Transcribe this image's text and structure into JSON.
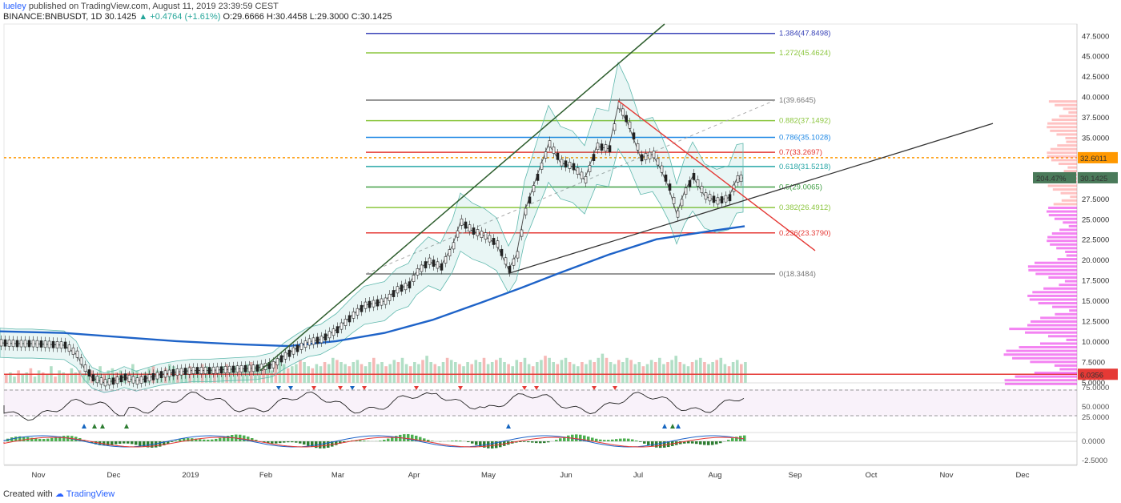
{
  "header": {
    "user": "lueley",
    "published_text": "published on TradingView.com, August 11, 2019 23:39:59 CEST",
    "symbol_line": "BINANCE:BNBUSDT, 1D",
    "close": "30.1425",
    "change": "▲ +0.4764 (+1.61%)",
    "ohlc": "O:29.6666 H:30.4458 L:29.3000 C:30.1425"
  },
  "footer": {
    "created_with": "Created with",
    "brand": "TradingView"
  },
  "colors": {
    "up": "#26a69a",
    "down": "#ef5350",
    "ma200": "#1e63c8",
    "fib_blue": "#3b45b8",
    "fib_lime": "#8cc63f",
    "fib_teal": "#27a6a6",
    "fib_red": "#e53935",
    "fib_gray": "#777777",
    "price_line": "#ff9800",
    "volume_hl": "#e53935"
  },
  "chart_data": {
    "type": "candlestick",
    "price_axis": {
      "ticks": [
        "47.5000",
        "45.0000",
        "42.5000",
        "40.0000",
        "37.5000",
        "35.0000",
        "32.5000",
        "27.5000",
        "25.0000",
        "22.5000",
        "20.0000",
        "17.5000",
        "15.0000",
        "12.5000",
        "10.0000",
        "7.5000",
        "5.0000"
      ],
      "ylim": [
        4,
        49
      ]
    },
    "time_axis": [
      "Nov",
      "Dec",
      "2019",
      "Feb",
      "Mar",
      "Apr",
      "May",
      "Jun",
      "Jul",
      "Aug",
      "Sep",
      "Oct",
      "Nov",
      "Dec"
    ],
    "price_labels": {
      "last": "30.1425",
      "last_pct": "204.47%",
      "orange_level": "32.6011",
      "red_level": "6.0356"
    },
    "levels": {
      "orange": 32.6011,
      "red": 6.0356
    },
    "fib_levels": [
      {
        "label": "1.384(47.8498)",
        "value": 47.8498,
        "color": "#3b45b8"
      },
      {
        "label": "1.272(45.4624)",
        "value": 45.4624,
        "color": "#8cc63f"
      },
      {
        "label": "1(39.6645)",
        "value": 39.6645,
        "color": "#777777"
      },
      {
        "label": "0.882(37.1492)",
        "value": 37.1492,
        "color": "#8cc63f"
      },
      {
        "label": "0.786(35.1028)",
        "value": 35.1028,
        "color": "#1e88e5"
      },
      {
        "label": "0.7(33.2697)",
        "value": 33.2697,
        "color": "#e53935"
      },
      {
        "label": "0.618(31.5218)",
        "value": 31.5218,
        "color": "#27a6a6"
      },
      {
        "label": "0.5(29.0065)",
        "value": 29.0065,
        "color": "#43a047"
      },
      {
        "label": "0.382(26.4912)",
        "value": 26.4912,
        "color": "#8cc63f"
      },
      {
        "label": "0.236(23.3790)",
        "value": 23.379,
        "color": "#e53935"
      },
      {
        "label": "0(18.3484)",
        "value": 18.3484,
        "color": "#777777"
      }
    ],
    "price_path": [
      [
        0,
        9.9
      ],
      [
        20,
        9.8
      ],
      [
        40,
        9.8
      ],
      [
        60,
        9.7
      ],
      [
        80,
        9.6
      ],
      [
        95,
        8.5
      ],
      [
        105,
        6.8
      ],
      [
        115,
        5.6
      ],
      [
        130,
        5.0
      ],
      [
        145,
        5.3
      ],
      [
        155,
        5.7
      ],
      [
        170,
        5.2
      ],
      [
        185,
        5.6
      ],
      [
        200,
        6.0
      ],
      [
        220,
        6.3
      ],
      [
        240,
        6.5
      ],
      [
        260,
        6.5
      ],
      [
        280,
        6.6
      ],
      [
        300,
        6.7
      ],
      [
        320,
        6.8
      ],
      [
        340,
        7.2
      ],
      [
        355,
        8.3
      ],
      [
        370,
        9.2
      ],
      [
        385,
        10.0
      ],
      [
        400,
        10.3
      ],
      [
        420,
        11.5
      ],
      [
        440,
        13.3
      ],
      [
        455,
        14.5
      ],
      [
        470,
        14.8
      ],
      [
        480,
        15.0
      ],
      [
        495,
        16.4
      ],
      [
        510,
        17.0
      ],
      [
        520,
        18.6
      ],
      [
        535,
        19.9
      ],
      [
        550,
        19.2
      ],
      [
        565,
        21.8
      ],
      [
        575,
        24.7
      ],
      [
        590,
        23.6
      ],
      [
        605,
        23.0
      ],
      [
        620,
        22.0
      ],
      [
        635,
        18.9
      ],
      [
        645,
        20.7
      ],
      [
        655,
        26.0
      ],
      [
        670,
        30.2
      ],
      [
        685,
        34.3
      ],
      [
        700,
        32.0
      ],
      [
        715,
        31.5
      ],
      [
        730,
        29.9
      ],
      [
        745,
        34.0
      ],
      [
        760,
        33.7
      ],
      [
        772,
        39.0
      ],
      [
        785,
        36.6
      ],
      [
        800,
        32.6
      ],
      [
        815,
        33.0
      ],
      [
        825,
        31.2
      ],
      [
        835,
        29.0
      ],
      [
        845,
        25.7
      ],
      [
        855,
        28.5
      ],
      [
        865,
        30.3
      ],
      [
        880,
        27.9
      ],
      [
        895,
        27.3
      ],
      [
        910,
        27.7
      ],
      [
        920,
        30.0
      ],
      [
        928,
        30.14
      ]
    ],
    "ma200_path": [
      [
        0,
        11.3
      ],
      [
        80,
        11.1
      ],
      [
        150,
        10.6
      ],
      [
        220,
        10.1
      ],
      [
        300,
        9.7
      ],
      [
        360,
        9.5
      ],
      [
        420,
        10.1
      ],
      [
        480,
        11.1
      ],
      [
        540,
        12.7
      ],
      [
        600,
        14.8
      ],
      [
        650,
        16.6
      ],
      [
        700,
        18.5
      ],
      [
        760,
        20.7
      ],
      [
        820,
        22.6
      ],
      [
        880,
        23.5
      ],
      [
        930,
        24.2
      ]
    ],
    "volume_heights": [
      4,
      5,
      3,
      6,
      4,
      5,
      7,
      3,
      6,
      5,
      4,
      8,
      3,
      6,
      5,
      4,
      7,
      5,
      6,
      4,
      5,
      6,
      3,
      8,
      4,
      6,
      7,
      5,
      6,
      4,
      5,
      9,
      6,
      4,
      5,
      7,
      8,
      6,
      5,
      7,
      9,
      8,
      6,
      5,
      7,
      8,
      6,
      5,
      9,
      8,
      7,
      6,
      5,
      8,
      9,
      7,
      8,
      6,
      7,
      9,
      10,
      8,
      9,
      7,
      8,
      6,
      10,
      12,
      9,
      7,
      8,
      9,
      11,
      10,
      8,
      7,
      9,
      8,
      10,
      9,
      12,
      11,
      10,
      9,
      8,
      10,
      11,
      9,
      8,
      10,
      12,
      9,
      10,
      8,
      9,
      11,
      10,
      12,
      9,
      8,
      10,
      9,
      11,
      13,
      10,
      9,
      8,
      10,
      12,
      11,
      10,
      9,
      8,
      10,
      9,
      11,
      10,
      12,
      9,
      10,
      11,
      12,
      10,
      9,
      8,
      11,
      10,
      12,
      9,
      8,
      10,
      11,
      13,
      12,
      10,
      9,
      11,
      12,
      10,
      9,
      8,
      10,
      9,
      11,
      10,
      12,
      14,
      12,
      10,
      9,
      11,
      10,
      12,
      11,
      9,
      10,
      8,
      9,
      11,
      10,
      12,
      9,
      10,
      11,
      13,
      10,
      9,
      8,
      10,
      11,
      12,
      10,
      9,
      10,
      11,
      12,
      9,
      8,
      10,
      11,
      9,
      10
    ],
    "rsi_axis": [
      "75.0000",
      "50.0000",
      "25.0000"
    ],
    "macd_axis": [
      "0.0000",
      "-2.5000"
    ]
  }
}
